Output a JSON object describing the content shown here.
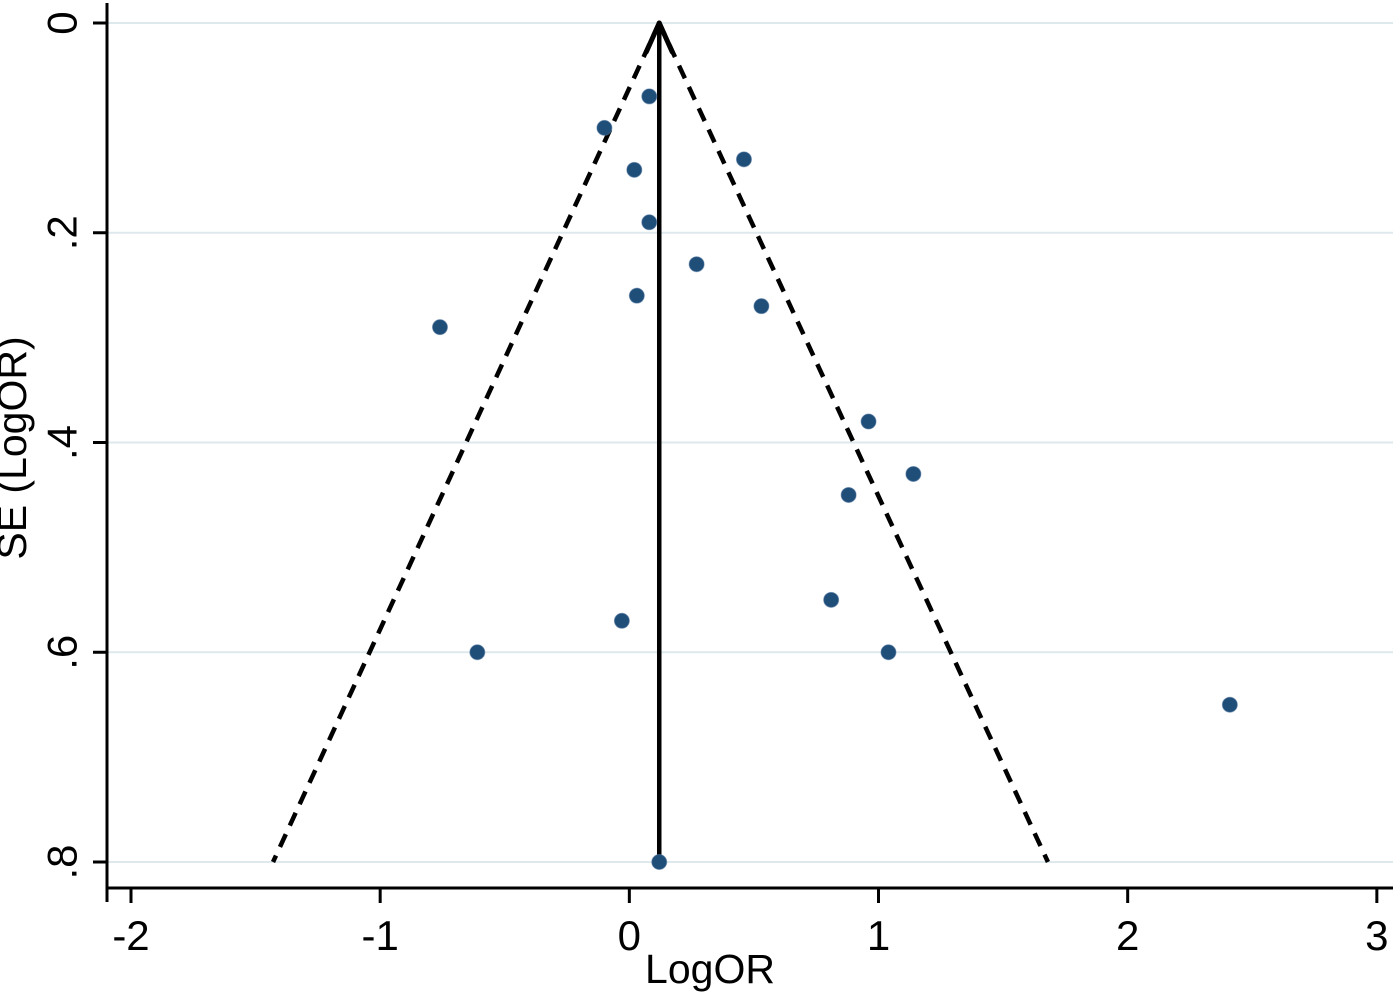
{
  "chart_data": {
    "type": "scatter",
    "subtype": "funnel-plot",
    "title": "",
    "xlabel": "LogOR",
    "ylabel": "SE (LogOR)",
    "xlim": [
      -2.1,
      3.07
    ],
    "ylim": [
      0,
      0.83
    ],
    "y_inverted": true,
    "grid": "horizontal",
    "legend": "none",
    "x_ticks": [
      {
        "value": -2,
        "label": "-2"
      },
      {
        "value": -1,
        "label": "-1"
      },
      {
        "value": 0,
        "label": "0"
      },
      {
        "value": 1,
        "label": "1"
      },
      {
        "value": 2,
        "label": "2"
      },
      {
        "value": 3,
        "label": "3"
      }
    ],
    "y_ticks": [
      {
        "value": 0.0,
        "label": "0"
      },
      {
        "value": 0.2,
        "label": ".2"
      },
      {
        "value": 0.4,
        "label": ".4"
      },
      {
        "value": 0.6,
        "label": ".6"
      },
      {
        "value": 0.8,
        "label": ".8"
      }
    ],
    "points": [
      {
        "logor": 0.08,
        "se": 0.07
      },
      {
        "logor": -0.1,
        "se": 0.1
      },
      {
        "logor": 0.46,
        "se": 0.13
      },
      {
        "logor": 0.02,
        "se": 0.14
      },
      {
        "logor": 0.08,
        "se": 0.19
      },
      {
        "logor": 0.27,
        "se": 0.23
      },
      {
        "logor": 0.03,
        "se": 0.26
      },
      {
        "logor": 0.53,
        "se": 0.27
      },
      {
        "logor": -0.76,
        "se": 0.29
      },
      {
        "logor": 0.96,
        "se": 0.38
      },
      {
        "logor": 1.14,
        "se": 0.43
      },
      {
        "logor": 0.88,
        "se": 0.45
      },
      {
        "logor": 0.81,
        "se": 0.55
      },
      {
        "logor": -0.03,
        "se": 0.57
      },
      {
        "logor": -0.61,
        "se": 0.6
      },
      {
        "logor": 1.04,
        "se": 0.6
      },
      {
        "logor": 2.41,
        "se": 0.65
      },
      {
        "logor": 0.12,
        "se": 0.8
      }
    ],
    "pooled_estimate_logor": 0.12,
    "pseudo_ci_lines": {
      "apex_logor": 0.12,
      "apex_se": 0,
      "base_se": 0.8,
      "base_left_logor": -1.43,
      "base_right_logor": 1.68
    }
  },
  "colors": {
    "point": "#1f4e79",
    "gridline": "#dde9ed",
    "axis": "#000000",
    "funnel_line": "#000000",
    "center_line": "#000000",
    "background": "#ffffff"
  }
}
